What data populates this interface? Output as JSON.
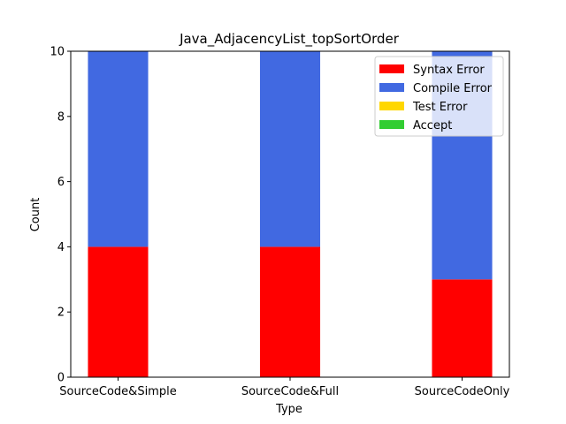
{
  "chart_data": {
    "type": "bar",
    "stacked": true,
    "title": "Java_AdjacencyList_topSortOrder",
    "xlabel": "Type",
    "ylabel": "Count",
    "categories": [
      "SourceCode&Simple",
      "SourceCode&Full",
      "SourceCodeOnly"
    ],
    "ylim": [
      0,
      10
    ],
    "yticks": [
      0,
      2,
      4,
      6,
      8,
      10
    ],
    "series": [
      {
        "name": "Syntax Error",
        "color": "#ff0000",
        "values": [
          4,
          4,
          3
        ]
      },
      {
        "name": "Compile Error",
        "color": "#4169e1",
        "values": [
          6,
          6,
          7
        ]
      },
      {
        "name": "Test Error",
        "color": "#ffd700",
        "values": [
          0,
          0,
          0
        ]
      },
      {
        "name": "Accept",
        "color": "#32cd32",
        "values": [
          0,
          0,
          0
        ]
      }
    ],
    "legend_position": "top-right",
    "grid": false
  }
}
